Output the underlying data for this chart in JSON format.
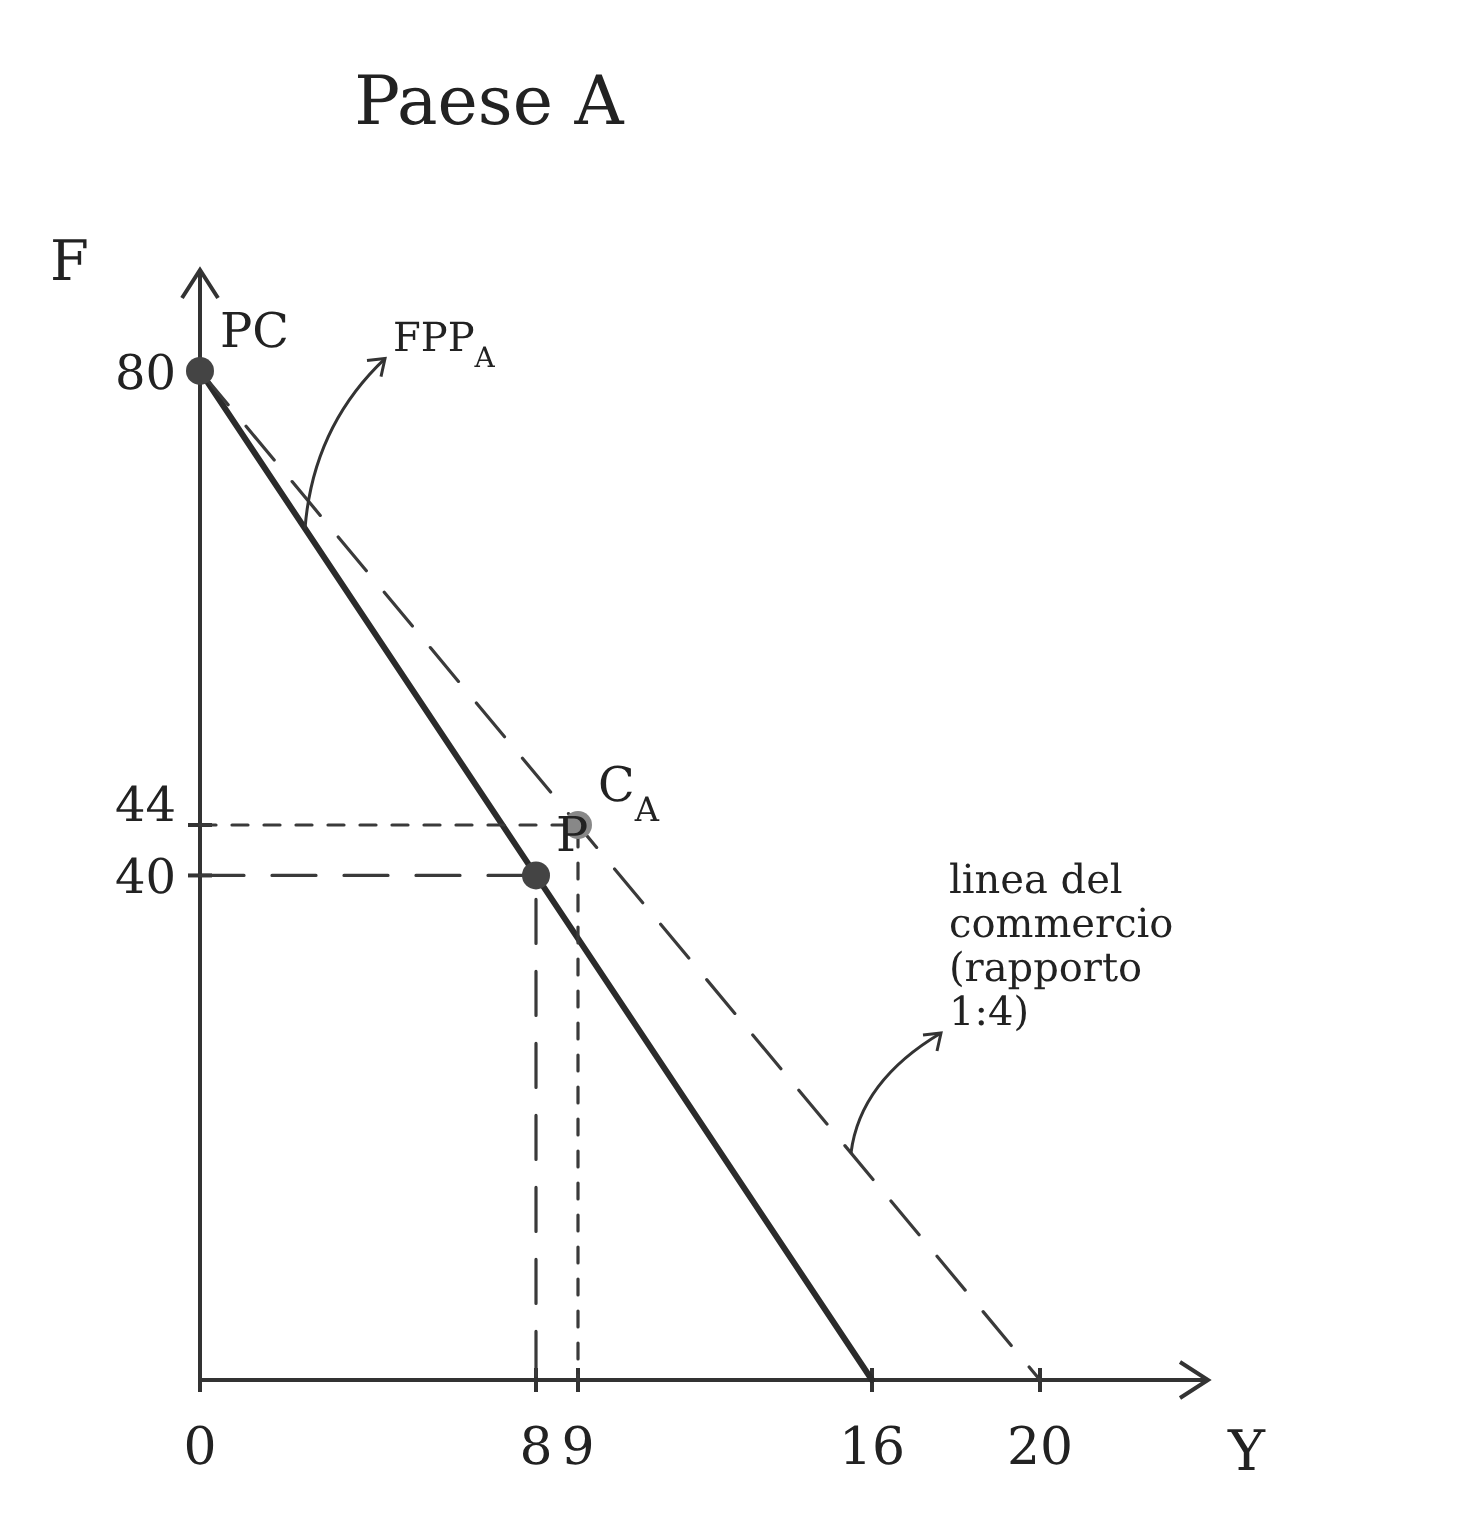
{
  "chart_data": {
    "type": "line",
    "title": "Paese A",
    "xlabel": "Y",
    "ylabel": "F",
    "xlim": [
      0,
      24
    ],
    "ylim": [
      0,
      88
    ],
    "xticks": [
      0,
      8,
      9,
      16,
      20
    ],
    "yticks": [
      40,
      44,
      80
    ],
    "grid": false,
    "series": [
      {
        "color": "#2b2b2b",
        "x": [
          0,
          16
        ],
        "values": [
          80,
          0
        ],
        "line_style": "solid"
      },
      {
        "color": "#3a3a3a",
        "x": [
          0,
          20
        ],
        "values": [
          80,
          0
        ],
        "line_style": "dashed"
      },
      {
        "color": "#3a3a3a",
        "x": [
          0,
          8,
          8
        ],
        "values": [
          40,
          40,
          0
        ],
        "line_style": "dashed"
      },
      {
        "color": "#3a3a3a",
        "x": [
          0,
          9,
          9
        ],
        "values": [
          44,
          44,
          0
        ],
        "line_style": "dotted"
      },
      {
        "type": "scatter",
        "color": "#444444",
        "x": [
          0,
          8
        ],
        "values": [
          80,
          40
        ],
        "marker": "circle"
      },
      {
        "type": "scatter",
        "color": "#888888",
        "x": [
          9
        ],
        "values": [
          44
        ],
        "marker": "circle"
      }
    ],
    "annotations": [
      {
        "text": "FPP$_{A}$",
        "x": 2.5,
        "y": 67.5
      },
      {
        "text": "linea del commercio (rapporto 1:4)",
        "x": 15.5,
        "y": 18
      },
      {
        "text": "PC",
        "x": 0,
        "y": 80
      },
      {
        "text": "P",
        "x": 8,
        "y": 40
      },
      {
        "text": "C$_{A}$",
        "x": 9,
        "y": 44
      }
    ]
  }
}
